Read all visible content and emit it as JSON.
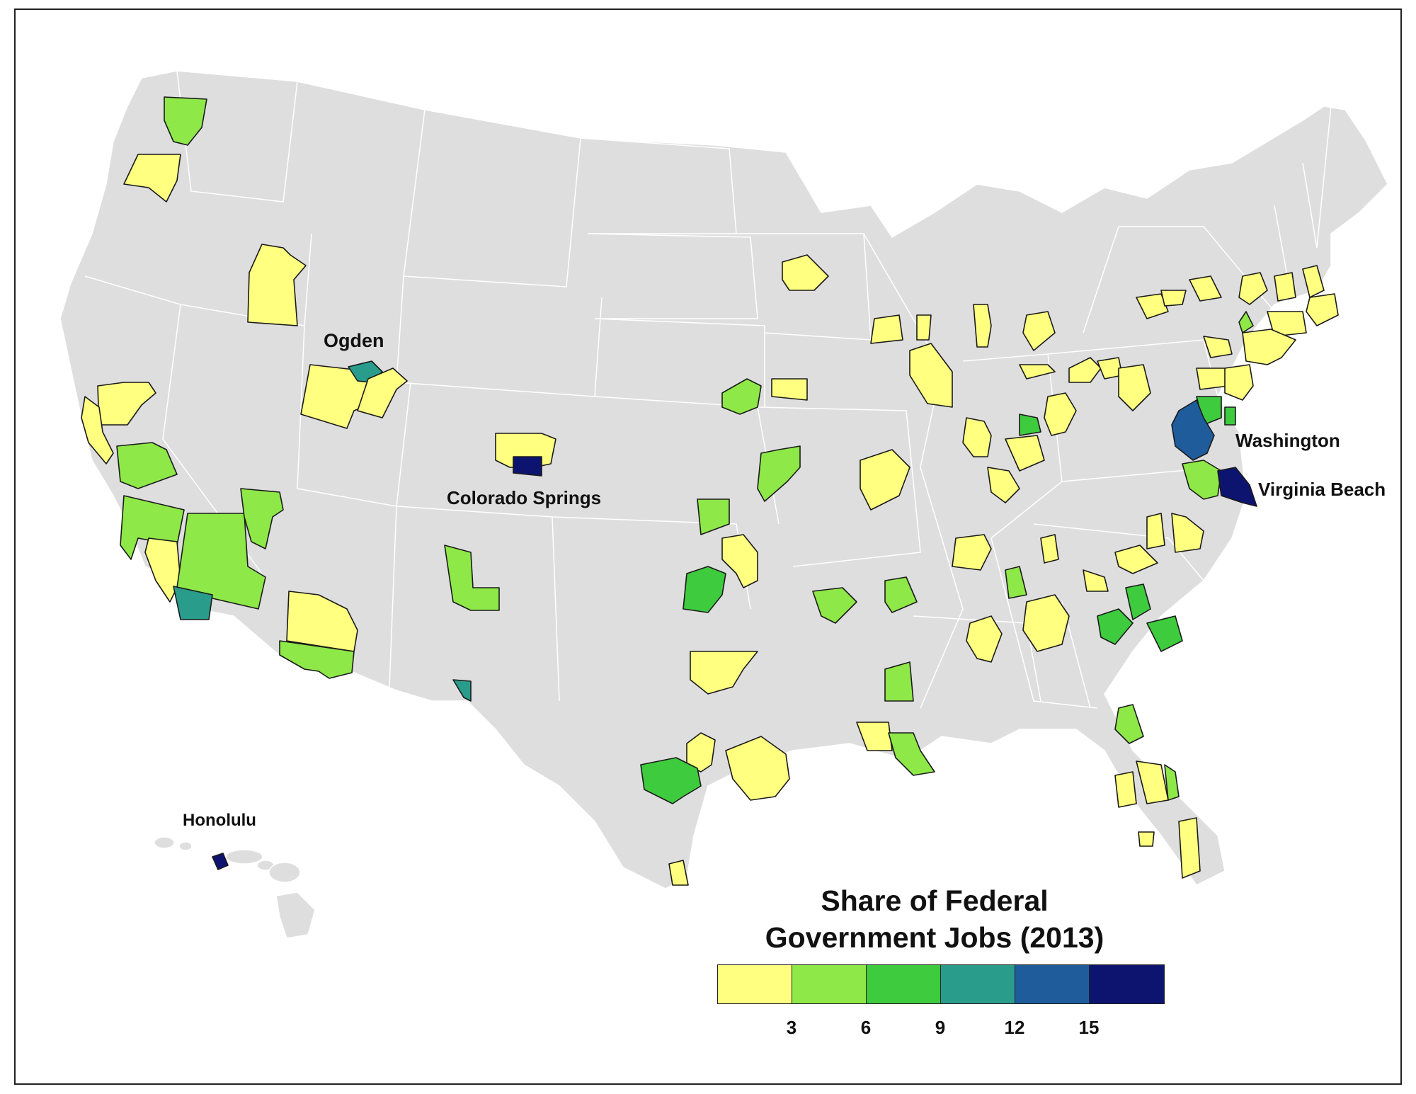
{
  "legend": {
    "title_line1": "Share of  Federal",
    "title_line2": "Government  Jobs (2013)",
    "bins": [
      {
        "color": "#ffff80"
      },
      {
        "color": "#8ee848"
      },
      {
        "color": "#3ecb3e"
      },
      {
        "color": "#2a9c8c"
      },
      {
        "color": "#1f5c9c"
      },
      {
        "color": "#0d1470"
      }
    ],
    "ticks": [
      "3",
      "6",
      "9",
      "12",
      "15"
    ]
  },
  "labels": {
    "ogden": "Ogden",
    "colorado_springs": "Colorado Springs",
    "washington": "Washington",
    "virginia_beach": "Virginia Beach",
    "honolulu": "Honolulu"
  },
  "colors": {
    "background": "#ffffff",
    "land": "#dedede",
    "state_border": "#ffffff",
    "metro_border": "#1a1a1a"
  }
}
